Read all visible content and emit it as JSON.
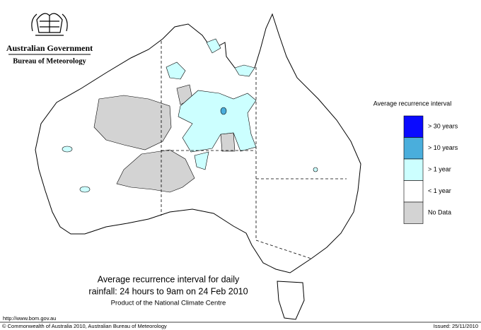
{
  "header": {
    "government": "Australian Government",
    "bureau": "Bureau of Meteorology"
  },
  "legend": {
    "title": "Average recurrence interval",
    "items": [
      {
        "label": "> 30 years",
        "color": "#0a0aff"
      },
      {
        "label": "> 10 years",
        "color": "#4aaedc"
      },
      {
        "label": "> 1 year",
        "color": "#ccffff"
      },
      {
        "label": "< 1 year",
        "color": "#ffffff"
      },
      {
        "label": "No Data",
        "color": "#d3d3d3"
      }
    ]
  },
  "caption": {
    "line1": "Average recurrence interval for daily",
    "line2": "rainfall: 24 hours to 9am on 24 Feb 2010",
    "line3": "Product of the National Climate Centre"
  },
  "footer": {
    "url": "http://www.bom.gov.au",
    "copyright": "© Commonwealth of Australia 2010, Australian Bureau of Meteorology",
    "issued": "Issued: 25/11/2010"
  }
}
